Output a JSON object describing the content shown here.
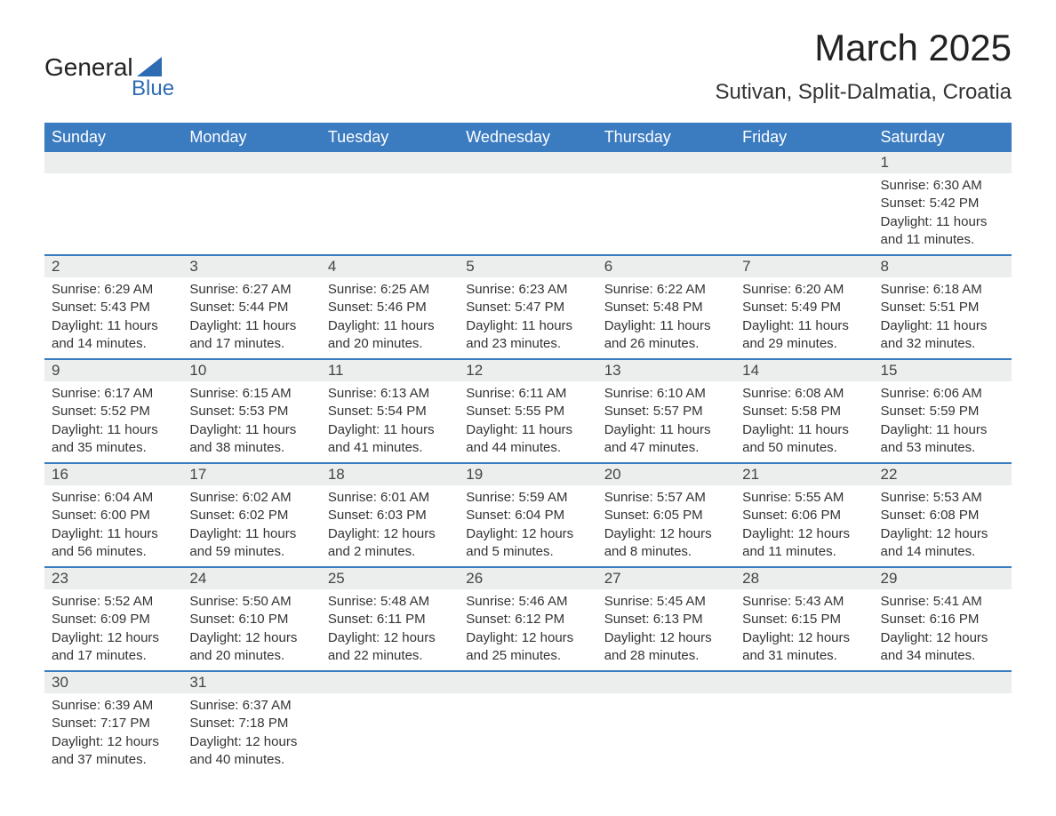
{
  "logo": {
    "top": "General",
    "bottom": "Blue"
  },
  "title": "March 2025",
  "location": "Sutivan, Split-Dalmatia, Croatia",
  "colors": {
    "header_bg": "#3b7bc0",
    "header_text": "#ffffff",
    "row_divider": "#3b7bc0",
    "daynum_bg": "#eceded",
    "text": "#333333",
    "logo_accent": "#2d6cb3",
    "page_bg": "#ffffff"
  },
  "typography": {
    "title_fontsize": 42,
    "location_fontsize": 24,
    "header_fontsize": 18,
    "daynum_fontsize": 17,
    "body_fontsize": 15
  },
  "weekdays": [
    "Sunday",
    "Monday",
    "Tuesday",
    "Wednesday",
    "Thursday",
    "Friday",
    "Saturday"
  ],
  "weeks": [
    [
      null,
      null,
      null,
      null,
      null,
      null,
      {
        "n": "1",
        "sr": "Sunrise: 6:30 AM",
        "ss": "Sunset: 5:42 PM",
        "d1": "Daylight: 11 hours",
        "d2": "and 11 minutes."
      }
    ],
    [
      {
        "n": "2",
        "sr": "Sunrise: 6:29 AM",
        "ss": "Sunset: 5:43 PM",
        "d1": "Daylight: 11 hours",
        "d2": "and 14 minutes."
      },
      {
        "n": "3",
        "sr": "Sunrise: 6:27 AM",
        "ss": "Sunset: 5:44 PM",
        "d1": "Daylight: 11 hours",
        "d2": "and 17 minutes."
      },
      {
        "n": "4",
        "sr": "Sunrise: 6:25 AM",
        "ss": "Sunset: 5:46 PM",
        "d1": "Daylight: 11 hours",
        "d2": "and 20 minutes."
      },
      {
        "n": "5",
        "sr": "Sunrise: 6:23 AM",
        "ss": "Sunset: 5:47 PM",
        "d1": "Daylight: 11 hours",
        "d2": "and 23 minutes."
      },
      {
        "n": "6",
        "sr": "Sunrise: 6:22 AM",
        "ss": "Sunset: 5:48 PM",
        "d1": "Daylight: 11 hours",
        "d2": "and 26 minutes."
      },
      {
        "n": "7",
        "sr": "Sunrise: 6:20 AM",
        "ss": "Sunset: 5:49 PM",
        "d1": "Daylight: 11 hours",
        "d2": "and 29 minutes."
      },
      {
        "n": "8",
        "sr": "Sunrise: 6:18 AM",
        "ss": "Sunset: 5:51 PM",
        "d1": "Daylight: 11 hours",
        "d2": "and 32 minutes."
      }
    ],
    [
      {
        "n": "9",
        "sr": "Sunrise: 6:17 AM",
        "ss": "Sunset: 5:52 PM",
        "d1": "Daylight: 11 hours",
        "d2": "and 35 minutes."
      },
      {
        "n": "10",
        "sr": "Sunrise: 6:15 AM",
        "ss": "Sunset: 5:53 PM",
        "d1": "Daylight: 11 hours",
        "d2": "and 38 minutes."
      },
      {
        "n": "11",
        "sr": "Sunrise: 6:13 AM",
        "ss": "Sunset: 5:54 PM",
        "d1": "Daylight: 11 hours",
        "d2": "and 41 minutes."
      },
      {
        "n": "12",
        "sr": "Sunrise: 6:11 AM",
        "ss": "Sunset: 5:55 PM",
        "d1": "Daylight: 11 hours",
        "d2": "and 44 minutes."
      },
      {
        "n": "13",
        "sr": "Sunrise: 6:10 AM",
        "ss": "Sunset: 5:57 PM",
        "d1": "Daylight: 11 hours",
        "d2": "and 47 minutes."
      },
      {
        "n": "14",
        "sr": "Sunrise: 6:08 AM",
        "ss": "Sunset: 5:58 PM",
        "d1": "Daylight: 11 hours",
        "d2": "and 50 minutes."
      },
      {
        "n": "15",
        "sr": "Sunrise: 6:06 AM",
        "ss": "Sunset: 5:59 PM",
        "d1": "Daylight: 11 hours",
        "d2": "and 53 minutes."
      }
    ],
    [
      {
        "n": "16",
        "sr": "Sunrise: 6:04 AM",
        "ss": "Sunset: 6:00 PM",
        "d1": "Daylight: 11 hours",
        "d2": "and 56 minutes."
      },
      {
        "n": "17",
        "sr": "Sunrise: 6:02 AM",
        "ss": "Sunset: 6:02 PM",
        "d1": "Daylight: 11 hours",
        "d2": "and 59 minutes."
      },
      {
        "n": "18",
        "sr": "Sunrise: 6:01 AM",
        "ss": "Sunset: 6:03 PM",
        "d1": "Daylight: 12 hours",
        "d2": "and 2 minutes."
      },
      {
        "n": "19",
        "sr": "Sunrise: 5:59 AM",
        "ss": "Sunset: 6:04 PM",
        "d1": "Daylight: 12 hours",
        "d2": "and 5 minutes."
      },
      {
        "n": "20",
        "sr": "Sunrise: 5:57 AM",
        "ss": "Sunset: 6:05 PM",
        "d1": "Daylight: 12 hours",
        "d2": "and 8 minutes."
      },
      {
        "n": "21",
        "sr": "Sunrise: 5:55 AM",
        "ss": "Sunset: 6:06 PM",
        "d1": "Daylight: 12 hours",
        "d2": "and 11 minutes."
      },
      {
        "n": "22",
        "sr": "Sunrise: 5:53 AM",
        "ss": "Sunset: 6:08 PM",
        "d1": "Daylight: 12 hours",
        "d2": "and 14 minutes."
      }
    ],
    [
      {
        "n": "23",
        "sr": "Sunrise: 5:52 AM",
        "ss": "Sunset: 6:09 PM",
        "d1": "Daylight: 12 hours",
        "d2": "and 17 minutes."
      },
      {
        "n": "24",
        "sr": "Sunrise: 5:50 AM",
        "ss": "Sunset: 6:10 PM",
        "d1": "Daylight: 12 hours",
        "d2": "and 20 minutes."
      },
      {
        "n": "25",
        "sr": "Sunrise: 5:48 AM",
        "ss": "Sunset: 6:11 PM",
        "d1": "Daylight: 12 hours",
        "d2": "and 22 minutes."
      },
      {
        "n": "26",
        "sr": "Sunrise: 5:46 AM",
        "ss": "Sunset: 6:12 PM",
        "d1": "Daylight: 12 hours",
        "d2": "and 25 minutes."
      },
      {
        "n": "27",
        "sr": "Sunrise: 5:45 AM",
        "ss": "Sunset: 6:13 PM",
        "d1": "Daylight: 12 hours",
        "d2": "and 28 minutes."
      },
      {
        "n": "28",
        "sr": "Sunrise: 5:43 AM",
        "ss": "Sunset: 6:15 PM",
        "d1": "Daylight: 12 hours",
        "d2": "and 31 minutes."
      },
      {
        "n": "29",
        "sr": "Sunrise: 5:41 AM",
        "ss": "Sunset: 6:16 PM",
        "d1": "Daylight: 12 hours",
        "d2": "and 34 minutes."
      }
    ],
    [
      {
        "n": "30",
        "sr": "Sunrise: 6:39 AM",
        "ss": "Sunset: 7:17 PM",
        "d1": "Daylight: 12 hours",
        "d2": "and 37 minutes."
      },
      {
        "n": "31",
        "sr": "Sunrise: 6:37 AM",
        "ss": "Sunset: 7:18 PM",
        "d1": "Daylight: 12 hours",
        "d2": "and 40 minutes."
      },
      null,
      null,
      null,
      null,
      null
    ]
  ]
}
